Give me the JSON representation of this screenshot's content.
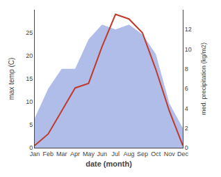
{
  "chart_data": {
    "type": "line",
    "categories": [
      "Jan",
      "Feb",
      "Mar",
      "Apr",
      "May",
      "Jun",
      "Jul",
      "Aug",
      "Sep",
      "Oct",
      "Nov",
      "Dec"
    ],
    "series": [
      {
        "type": "area",
        "axis": "y2",
        "color": "#b0bde8",
        "values": [
          3,
          6,
          8,
          8,
          11,
          12.5,
          12,
          12.5,
          11.5,
          9.5,
          4.5,
          2
        ]
      },
      {
        "type": "line",
        "color": "#c0392b",
        "values": [
          0.5,
          3,
          8,
          13,
          14,
          22,
          29,
          28,
          25,
          17,
          8,
          0.5
        ]
      }
    ],
    "xlabel": "date (month)",
    "ylabel": "max temp (C)",
    "y2label": "med. precipitation (kg/m2)",
    "ylim": [
      0,
      30
    ],
    "yticks": [
      0,
      5,
      10,
      15,
      20,
      25
    ],
    "y2lim": [
      0,
      14
    ],
    "y2ticks": [
      0,
      2,
      4,
      6,
      8,
      10,
      12
    ],
    "grid": false
  }
}
